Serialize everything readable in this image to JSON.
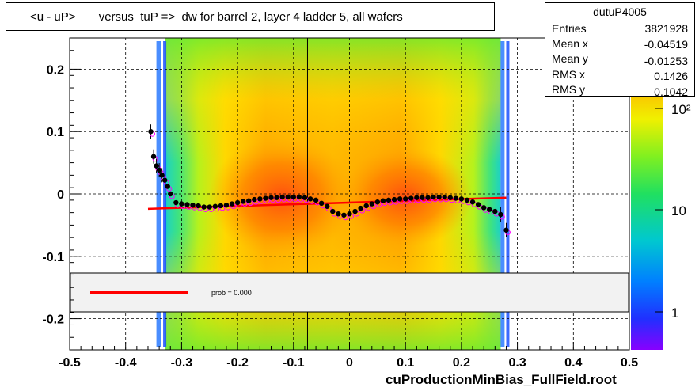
{
  "title": "<u - uP>       versus  tuP =>  dw for barrel 2, layer 4 ladder 5, all wafers",
  "footer": "cuProductionMinBias_FullField.root",
  "stats": {
    "name": "dutuP4005",
    "rows": [
      {
        "label": "Entries",
        "value": "3821928"
      },
      {
        "label": "Mean x",
        "value": "-0.04519"
      },
      {
        "label": "Mean y",
        "value": "-0.01253"
      },
      {
        "label": "RMS x",
        "value": "0.1426"
      },
      {
        "label": "RMS y",
        "value": "0.1042"
      }
    ]
  },
  "legend": {
    "text": "prob = 0.000"
  },
  "colors": {
    "profile": "#000000",
    "fit": "#ff0000",
    "markers": "#ff00ff",
    "legend_bg": "#f2f2f2"
  },
  "chart_data": {
    "type": "heatmap",
    "xlim": [
      -0.5,
      0.5
    ],
    "ylim": [
      -0.25,
      0.25
    ],
    "x_ticks": [
      "-0.5",
      "-0.4",
      "-0.3",
      "-0.2",
      "-0.1",
      "0",
      "0.1",
      "0.2",
      "0.3",
      "0.4",
      "0.5"
    ],
    "y_ticks": [
      "-0.2",
      "-0.1",
      "0",
      "0.1",
      "0.2"
    ],
    "grid": true,
    "z_scale": "log",
    "z_ticks": [
      "1",
      "10",
      "10²"
    ],
    "fill_x_range": [
      -0.33,
      0.27
    ],
    "vline_x": -0.075,
    "profile": {
      "x": [
        -0.355,
        -0.35,
        -0.345,
        -0.34,
        -0.335,
        -0.33,
        -0.325,
        -0.32,
        -0.31,
        -0.3,
        -0.29,
        -0.28,
        -0.27,
        -0.26,
        -0.25,
        -0.24,
        -0.23,
        -0.22,
        -0.21,
        -0.2,
        -0.19,
        -0.18,
        -0.17,
        -0.16,
        -0.15,
        -0.14,
        -0.13,
        -0.12,
        -0.11,
        -0.1,
        -0.09,
        -0.08,
        -0.07,
        -0.06,
        -0.05,
        -0.04,
        -0.03,
        -0.02,
        -0.01,
        0.0,
        0.01,
        0.02,
        0.03,
        0.04,
        0.05,
        0.06,
        0.07,
        0.08,
        0.09,
        0.1,
        0.11,
        0.12,
        0.13,
        0.14,
        0.15,
        0.16,
        0.17,
        0.18,
        0.19,
        0.2,
        0.21,
        0.22,
        0.23,
        0.24,
        0.25,
        0.26,
        0.27,
        0.28
      ],
      "y": [
        0.1,
        0.06,
        0.045,
        0.038,
        0.03,
        0.022,
        0.012,
        0.0,
        -0.014,
        -0.016,
        -0.017,
        -0.018,
        -0.019,
        -0.021,
        -0.021,
        -0.02,
        -0.019,
        -0.018,
        -0.016,
        -0.014,
        -0.012,
        -0.011,
        -0.009,
        -0.008,
        -0.007,
        -0.006,
        -0.006,
        -0.005,
        -0.005,
        -0.005,
        -0.005,
        -0.006,
        -0.008,
        -0.01,
        -0.015,
        -0.02,
        -0.028,
        -0.032,
        -0.034,
        -0.032,
        -0.028,
        -0.023,
        -0.019,
        -0.016,
        -0.013,
        -0.011,
        -0.01,
        -0.009,
        -0.008,
        -0.008,
        -0.007,
        -0.006,
        -0.006,
        -0.006,
        -0.005,
        -0.005,
        -0.005,
        -0.006,
        -0.007,
        -0.008,
        -0.01,
        -0.013,
        -0.017,
        -0.022,
        -0.025,
        -0.028,
        -0.033,
        -0.058
      ]
    },
    "fit": {
      "x": [
        -0.36,
        0.28
      ],
      "y": [
        -0.024,
        -0.006
      ]
    }
  }
}
